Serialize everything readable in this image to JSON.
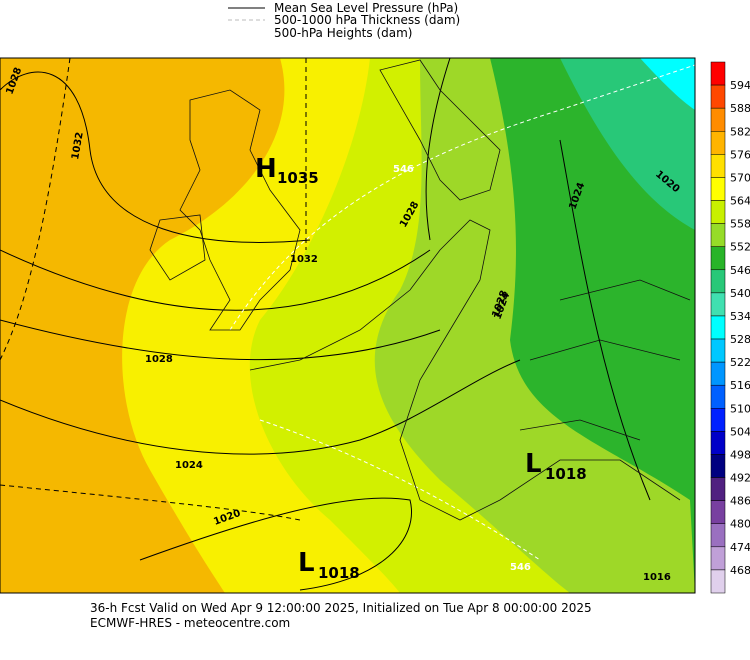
{
  "legend": [
    "Mean Sea Level Pressure (hPa)",
    "500-1000 hPa Thickness (dam)",
    "500-hPa Heights (dam)"
  ],
  "colorbar": {
    "labels": [
      "594",
      "588",
      "582",
      "576",
      "570",
      "564",
      "558",
      "552",
      "546",
      "540",
      "534",
      "528",
      "522",
      "516",
      "510",
      "504",
      "498",
      "492",
      "486",
      "480",
      "474",
      "468"
    ]
  },
  "centers": [
    {
      "letter": "H",
      "value": "1035"
    },
    {
      "letter": "L",
      "value": "1018"
    },
    {
      "letter": "L",
      "value": "1018"
    }
  ],
  "isobar_labels": [
    "1028",
    "1032",
    "1028",
    "1032",
    "1028",
    "1024",
    "1020",
    "1028",
    "1024",
    "1020",
    "1016",
    "1024"
  ],
  "thickness_labels": [
    "546",
    "546"
  ],
  "footer": [
    "36-h Fcst Valid on Wed Apr  9 12:00:00 2025, Initialized on Tue Apr  8 00:00:00 2025",
    "ECMWF-HRES  - meteocentre.com"
  ]
}
